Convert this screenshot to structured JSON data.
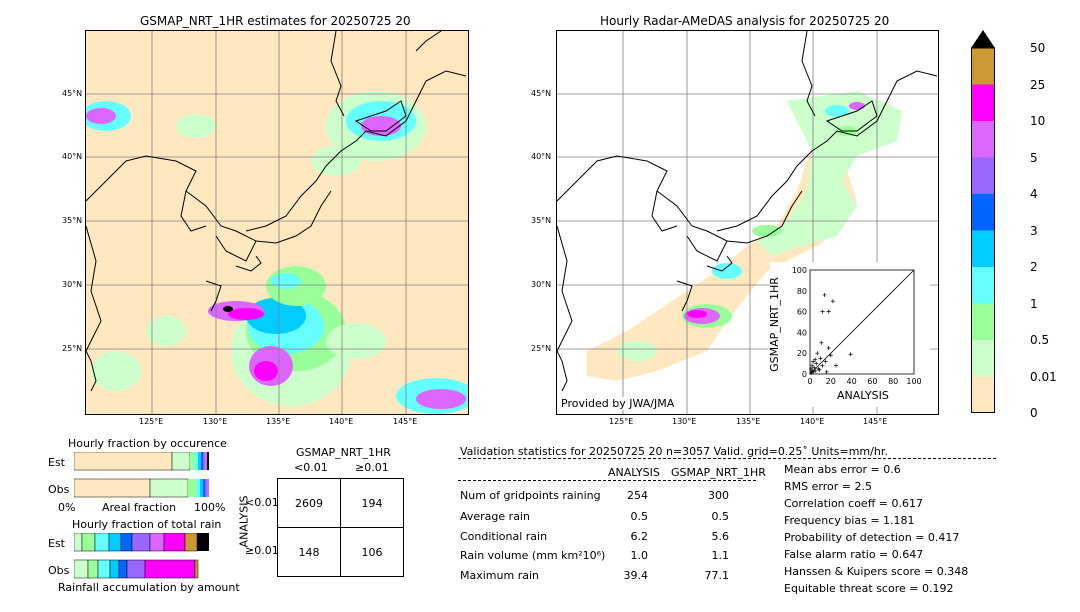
{
  "left_map": {
    "title": "GSMAP_NRT_1HR estimates for 20250725 20",
    "lat_labels": [
      "45°N",
      "40°N",
      "35°N",
      "30°N",
      "25°N"
    ],
    "lon_labels": [
      "125°E",
      "130°E",
      "135°E",
      "140°E",
      "145°E"
    ]
  },
  "right_map": {
    "title": "Hourly Radar-AMeDAS analysis for 20250725 20",
    "lat_labels": [
      "45°N",
      "40°N",
      "35°N",
      "30°N",
      "25°N"
    ],
    "lon_labels": [
      "125°E",
      "130°E",
      "135°E",
      "140°E",
      "145°E"
    ],
    "credit": "Provided by JWA/JMA"
  },
  "colorbar": {
    "labels": [
      "50",
      "25",
      "10",
      "5",
      "4",
      "3",
      "2",
      "1",
      "0.5",
      "0.01",
      "0"
    ],
    "colors": [
      "#cc9933",
      "#ff00ff",
      "#dd66ff",
      "#9966ff",
      "#0066ff",
      "#00ccff",
      "#66ffff",
      "#99ff99",
      "#ccffcc",
      "#ffe8c0"
    ]
  },
  "scatter": {
    "xlabel": "ANALYSIS",
    "ylabel": "GSMAP_NRT_1HR",
    "ticks": [
      "0",
      "20",
      "40",
      "60",
      "80",
      "100"
    ]
  },
  "occurrence": {
    "title": "Hourly fraction by occurence",
    "row_labels": [
      "Est",
      "Obs"
    ],
    "axis_left": "0%",
    "axis_mid": "Areal fraction",
    "axis_right": "100%"
  },
  "total_rain": {
    "title": "Hourly fraction of total rain",
    "row_labels": [
      "Est",
      "Obs"
    ],
    "footer": "Rainfall accumulation by amount"
  },
  "contingency": {
    "title": "GSMAP_NRT_1HR",
    "col_labels": [
      "<0.01",
      "≥0.01"
    ],
    "row_axis": "ANALYSIS",
    "row_labels": [
      "<0.01",
      "≥0.01"
    ],
    "cells": [
      "2609",
      "194",
      "148",
      "106"
    ]
  },
  "validation": {
    "header": "Validation statistics for 20250725 20  n=3057 Valid. grid=0.25˚ Units=mm/hr.",
    "col_analysis": "ANALYSIS",
    "col_gsmap": "GSMAP_NRT_1HR",
    "rows": [
      {
        "label": "Num of gridpoints raining",
        "a": "254",
        "g": "300"
      },
      {
        "label": "Average rain",
        "a": "0.5",
        "g": "0.5"
      },
      {
        "label": "Conditional rain",
        "a": "6.2",
        "g": "5.6"
      },
      {
        "label": "Rain volume (mm km²10⁶)",
        "a": "1.0",
        "g": "1.1"
      },
      {
        "label": "Maximum rain",
        "a": "39.4",
        "g": "77.1"
      }
    ],
    "scores": [
      "Mean abs error =    0.6",
      "RMS error =    2.5",
      "Correlation coeff =  0.617",
      "Frequency bias =  1.181",
      "Probability of detection =  0.417",
      "False alarm ratio =  0.647",
      "Hanssen & Kuipers score =  0.348",
      "Equitable threat score =  0.192"
    ]
  },
  "chart_data": [
    {
      "type": "scatter",
      "xlabel": "ANALYSIS",
      "ylabel": "GSMAP_NRT_1HR",
      "xlim": [
        0,
        100
      ],
      "ylim": [
        0,
        100
      ],
      "points": [
        [
          1,
          1
        ],
        [
          2,
          3
        ],
        [
          3,
          2
        ],
        [
          1,
          5
        ],
        [
          4,
          6
        ],
        [
          5,
          3
        ],
        [
          2,
          8
        ],
        [
          6,
          10
        ],
        [
          8,
          5
        ],
        [
          3,
          12
        ],
        [
          10,
          15
        ],
        [
          12,
          8
        ],
        [
          7,
          20
        ],
        [
          15,
          12
        ],
        [
          18,
          25
        ],
        [
          20,
          18
        ],
        [
          12,
          60
        ],
        [
          14,
          76
        ],
        [
          18,
          60
        ],
        [
          22,
          70
        ],
        [
          39,
          19
        ],
        [
          9,
          4
        ],
        [
          5,
          14
        ],
        [
          16,
          2
        ],
        [
          25,
          8
        ],
        [
          11,
          30
        ]
      ]
    },
    {
      "type": "bar",
      "title": "Hourly fraction by occurence",
      "categories": [
        "Est",
        "Obs"
      ]
    },
    {
      "type": "bar",
      "title": "Hourly fraction of total rain",
      "categories": [
        "Est",
        "Obs"
      ]
    }
  ]
}
